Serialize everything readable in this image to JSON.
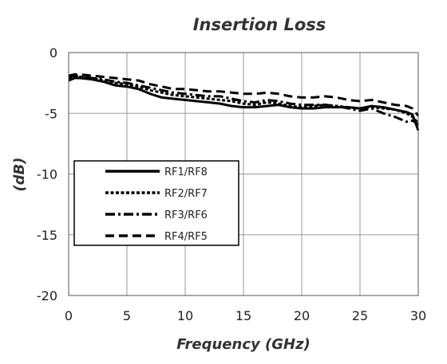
{
  "chart_data": {
    "type": "line",
    "title": "Insertion Loss",
    "xlabel": "Frequency (GHz)",
    "ylabel": "(dB)",
    "xlim": [
      0,
      30
    ],
    "ylim": [
      -20,
      0
    ],
    "xticks": [
      0,
      5,
      10,
      15,
      20,
      25,
      30
    ],
    "yticks": [
      0,
      -5,
      -10,
      -15,
      -20
    ],
    "grid": true,
    "legend_position": "center-left",
    "series": [
      {
        "name": "RF1/RF8",
        "style": "solid",
        "x": [
          0,
          0.5,
          1,
          2,
          3,
          4,
          5,
          6,
          7,
          8,
          9,
          10,
          11,
          12,
          13,
          14,
          15,
          16,
          17,
          18,
          19,
          20,
          21,
          22,
          23,
          24,
          25,
          26,
          27,
          28,
          29,
          29.5,
          30
        ],
        "y": [
          -2.3,
          -2.1,
          -2.1,
          -2.2,
          -2.4,
          -2.7,
          -2.8,
          -3.0,
          -3.4,
          -3.7,
          -3.8,
          -3.9,
          -4.0,
          -4.1,
          -4.2,
          -4.4,
          -4.5,
          -4.5,
          -4.4,
          -4.3,
          -4.5,
          -4.6,
          -4.6,
          -4.5,
          -4.5,
          -4.5,
          -4.6,
          -4.4,
          -4.5,
          -4.7,
          -4.9,
          -5.1,
          -6.4
        ]
      },
      {
        "name": "RF2/RF7",
        "style": "dotted",
        "x": [
          0,
          0.5,
          1,
          2,
          3,
          4,
          5,
          6,
          7,
          8,
          9,
          10,
          11,
          12,
          13,
          14,
          15,
          16,
          17,
          18,
          19,
          20,
          21,
          22,
          23,
          24,
          25,
          26,
          27,
          28,
          29,
          29.5,
          30
        ],
        "y": [
          -2.1,
          -2.0,
          -2.0,
          -2.1,
          -2.3,
          -2.5,
          -2.6,
          -2.8,
          -3.1,
          -3.3,
          -3.5,
          -3.6,
          -3.7,
          -3.8,
          -3.9,
          -4.0,
          -4.2,
          -4.3,
          -4.1,
          -4.2,
          -4.4,
          -4.5,
          -4.4,
          -4.3,
          -4.4,
          -4.5,
          -4.6,
          -4.5,
          -4.6,
          -4.7,
          -5.0,
          -5.3,
          -5.8
        ]
      },
      {
        "name": "RF3/RF6",
        "style": "dash-dot",
        "x": [
          0,
          0.5,
          1,
          2,
          3,
          4,
          5,
          6,
          7,
          8,
          9,
          10,
          11,
          12,
          13,
          14,
          15,
          16,
          17,
          18,
          19,
          20,
          21,
          22,
          23,
          24,
          25,
          26,
          27,
          28,
          29,
          29.5,
          30
        ],
        "y": [
          -2.0,
          -1.9,
          -2.0,
          -2.1,
          -2.2,
          -2.4,
          -2.5,
          -2.7,
          -2.9,
          -3.1,
          -3.3,
          -3.4,
          -3.5,
          -3.6,
          -3.6,
          -3.8,
          -4.0,
          -4.1,
          -3.9,
          -4.0,
          -4.2,
          -4.3,
          -4.3,
          -4.3,
          -4.4,
          -4.6,
          -4.8,
          -4.6,
          -5.0,
          -5.3,
          -5.7,
          -5.6,
          -5.9
        ]
      },
      {
        "name": "RF4/RF5",
        "style": "dashed",
        "x": [
          0,
          0.5,
          1,
          2,
          3,
          4,
          5,
          6,
          7,
          8,
          9,
          10,
          11,
          12,
          13,
          14,
          15,
          16,
          17,
          18,
          19,
          20,
          21,
          22,
          23,
          24,
          25,
          26,
          27,
          28,
          29,
          29.5,
          30
        ],
        "y": [
          -1.9,
          -1.8,
          -1.8,
          -1.9,
          -2.0,
          -2.1,
          -2.2,
          -2.3,
          -2.6,
          -2.8,
          -3.0,
          -3.0,
          -3.1,
          -3.2,
          -3.2,
          -3.3,
          -3.4,
          -3.4,
          -3.3,
          -3.4,
          -3.6,
          -3.7,
          -3.7,
          -3.6,
          -3.7,
          -3.9,
          -4.0,
          -3.9,
          -4.1,
          -4.3,
          -4.4,
          -4.6,
          -5.2
        ]
      }
    ]
  }
}
